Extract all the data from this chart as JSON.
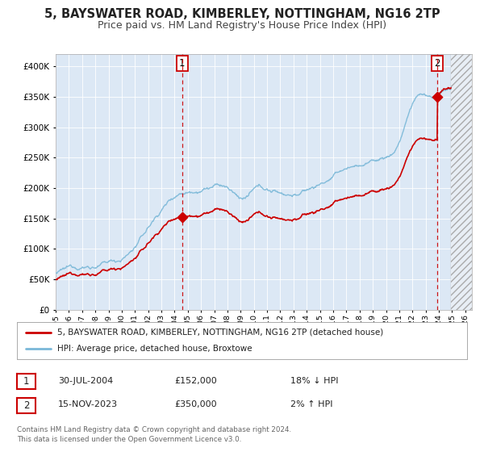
{
  "title": "5, BAYSWATER ROAD, KIMBERLEY, NOTTINGHAM, NG16 2TP",
  "subtitle": "Price paid vs. HM Land Registry's House Price Index (HPI)",
  "background_color": "#ffffff",
  "plot_bg_color": "#dce8f5",
  "ylim": [
    0,
    420000
  ],
  "xlim_start": 1995.0,
  "xlim_end": 2026.5,
  "sale1_year": 2004.578,
  "sale1_price": 152000,
  "sale1_label": "1",
  "sale2_year": 2023.876,
  "sale2_price": 350000,
  "sale2_label": "2",
  "hatch_start": 2024.917,
  "legend_line1": "5, BAYSWATER ROAD, KIMBERLEY, NOTTINGHAM, NG16 2TP (detached house)",
  "legend_line2": "HPI: Average price, detached house, Broxtowe",
  "table_row1": [
    "1",
    "30-JUL-2004",
    "£152,000",
    "18% ↓ HPI"
  ],
  "table_row2": [
    "2",
    "15-NOV-2023",
    "£350,000",
    "2% ↑ HPI"
  ],
  "footnote1": "Contains HM Land Registry data © Crown copyright and database right 2024.",
  "footnote2": "This data is licensed under the Open Government Licence v3.0.",
  "hpi_color": "#7ab8d8",
  "price_color": "#cc0000",
  "marker_color": "#cc0000",
  "vline_color": "#cc0000",
  "title_fontsize": 10.5,
  "subtitle_fontsize": 9
}
